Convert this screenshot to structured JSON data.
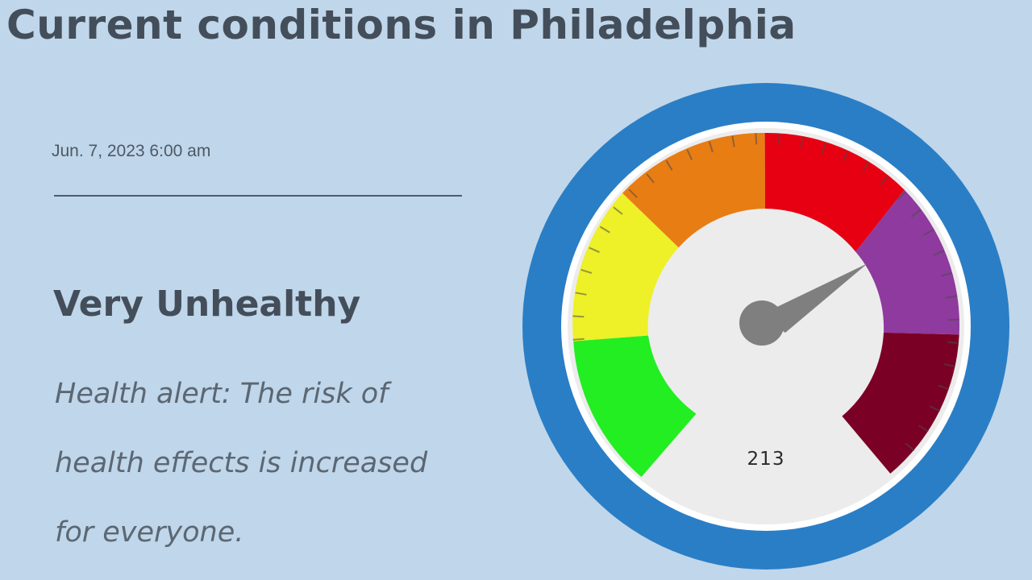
{
  "header": {
    "title": "Current conditions in Philadelphia"
  },
  "reading": {
    "timestamp": "Jun. 7, 2023 6:00 am",
    "level": "Very Unhealthy",
    "message": "Health alert: The risk of health effects is increased for everyone."
  },
  "gauge": {
    "aqi_value": "213",
    "segments": [
      {
        "name": "good",
        "color": "#22ee22"
      },
      {
        "name": "moderate",
        "color": "#eef028"
      },
      {
        "name": "unhealthy-for-sensitive-groups",
        "color": "#e87d14"
      },
      {
        "name": "unhealthy",
        "color": "#e60012"
      },
      {
        "name": "very-unhealthy",
        "color": "#8e3a9e"
      },
      {
        "name": "hazardous",
        "color": "#7b0025"
      }
    ],
    "frame_color": "#2a7ec6",
    "needle_color": "#7f7f7f"
  }
}
